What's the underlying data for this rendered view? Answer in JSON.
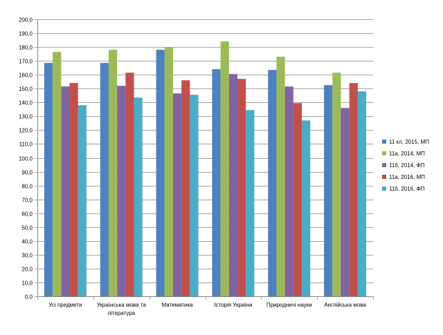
{
  "chart_data": {
    "type": "bar",
    "title": "",
    "xlabel": "",
    "ylabel": "",
    "ylim": [
      0,
      200
    ],
    "ytick_step": 10,
    "ytick_labels": [
      "0,0",
      "10,0",
      "20,0",
      "30,0",
      "40,0",
      "50,0",
      "60,0",
      "70,0",
      "80,0",
      "90,0",
      "100,0",
      "110,0",
      "120,0",
      "130,0",
      "140,0",
      "150,0",
      "160,0",
      "170,0",
      "180,0",
      "190,0",
      "200,0"
    ],
    "grid": true,
    "legend_position": "right",
    "categories": [
      [
        "Усі предмети"
      ],
      [
        "Українська мова та",
        "література"
      ],
      [
        "Математика"
      ],
      [
        "Історія України"
      ],
      [
        "Природничі науки"
      ],
      [
        "Англійська мова"
      ]
    ],
    "series": [
      {
        "name": "11 кл, 2015, МП",
        "color": "#4f81bd",
        "values": [
          168.5,
          168.5,
          178.0,
          164.0,
          163.5,
          152.5
        ]
      },
      {
        "name": "11а, 2014, МП",
        "color": "#9bbb59",
        "values": [
          176.5,
          178.0,
          179.5,
          184.0,
          173.0,
          161.5
        ]
      },
      {
        "name": "11б, 2014, ФП",
        "color": "#8064a2",
        "values": [
          151.5,
          152.0,
          146.5,
          160.5,
          151.5,
          136.0
        ]
      },
      {
        "name": "11а, 2016, МП",
        "color": "#c0504d",
        "values": [
          154.0,
          161.5,
          156.0,
          157.0,
          139.5,
          154.0
        ]
      },
      {
        "name": "11б, 2016, ФП",
        "color": "#4bacc6",
        "values": [
          138.0,
          143.5,
          145.5,
          134.5,
          127.0,
          148.0
        ]
      }
    ]
  }
}
